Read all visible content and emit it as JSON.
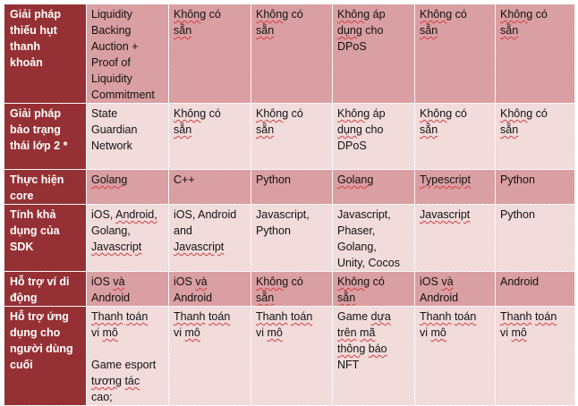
{
  "colors": {
    "header_bg": "#953135",
    "row_dark": "#da9fa3",
    "row_light": "#f2dbdb",
    "header_text": "#ffffff"
  },
  "rows": [
    {
      "shade": "dark",
      "header": [
        "Giải pháp",
        "thiếu hụt",
        "thanh",
        "khoản"
      ],
      "cells": [
        [
          "Liquidity",
          "Backing",
          "Auction +",
          "Proof of",
          "Liquidity",
          "Commitment"
        ],
        [
          "Không có",
          "sẵn"
        ],
        [
          "Không có",
          "sẵn"
        ],
        [
          "Không áp",
          "dụng cho",
          "DPoS"
        ],
        [
          "Không có",
          "sẵn"
        ],
        [
          "Không có",
          "sẵn"
        ]
      ]
    },
    {
      "shade": "light",
      "header": [
        "Giải pháp",
        "bảo trạng",
        "thái lớp 2 *"
      ],
      "cells": [
        [
          "State",
          "Guardian",
          "Network"
        ],
        [
          "Không có",
          "sẵn"
        ],
        [
          "Không có",
          "sẵn"
        ],
        [
          "Không áp",
          "dụng cho",
          "DPoS"
        ],
        [
          "Không có",
          "sẵn"
        ],
        [
          "Không có",
          "sẵn"
        ]
      ]
    },
    {
      "shade": "dark",
      "header": [
        "Thực hiện",
        "core"
      ],
      "cells": [
        [
          "Golang"
        ],
        [
          "C++"
        ],
        [
          "Python"
        ],
        [
          "Golang"
        ],
        [
          "Typescript"
        ],
        [
          "Python"
        ]
      ]
    },
    {
      "shade": "light",
      "header": [
        "Tính khả",
        "dụng của",
        "SDK"
      ],
      "cells": [
        [
          "iOS, Android,",
          "Golang,",
          "Javascript"
        ],
        [
          "iOS, Android",
          "and",
          "Javascript"
        ],
        [
          "Javascript,",
          "Python"
        ],
        [
          "Javascript,",
          "Phaser,",
          "Golang,",
          "Unity, Cocos"
        ],
        [
          "Javascript"
        ],
        [
          "Python"
        ]
      ]
    },
    {
      "shade": "dark",
      "header": [
        "Hỗ trợ ví di",
        "động"
      ],
      "cells": [
        [
          "iOS và",
          "Android"
        ],
        [
          "iOS và",
          "Android"
        ],
        [
          "Không có",
          "sẵn"
        ],
        [
          "Không có",
          "sẵn"
        ],
        [
          "iOS và",
          "Android"
        ],
        [
          "Android"
        ]
      ]
    },
    {
      "shade": "light",
      "header": [
        "Hỗ trợ ứng",
        "dụng cho",
        "người dùng",
        "cuối"
      ],
      "cells": [
        [
          "Thanh toán",
          "vi mô",
          "",
          "Game esport",
          "tương tác",
          "cao;"
        ],
        [
          "Thanh toán",
          "vi mô"
        ],
        [
          "Thanh toán",
          "vi mô"
        ],
        [
          "Game dựa",
          "trên mã",
          "thông báo",
          "NFT"
        ],
        [
          "Thanh toán",
          "vi mô"
        ],
        [
          "Thanh toán",
          "vi mô"
        ]
      ]
    }
  ]
}
